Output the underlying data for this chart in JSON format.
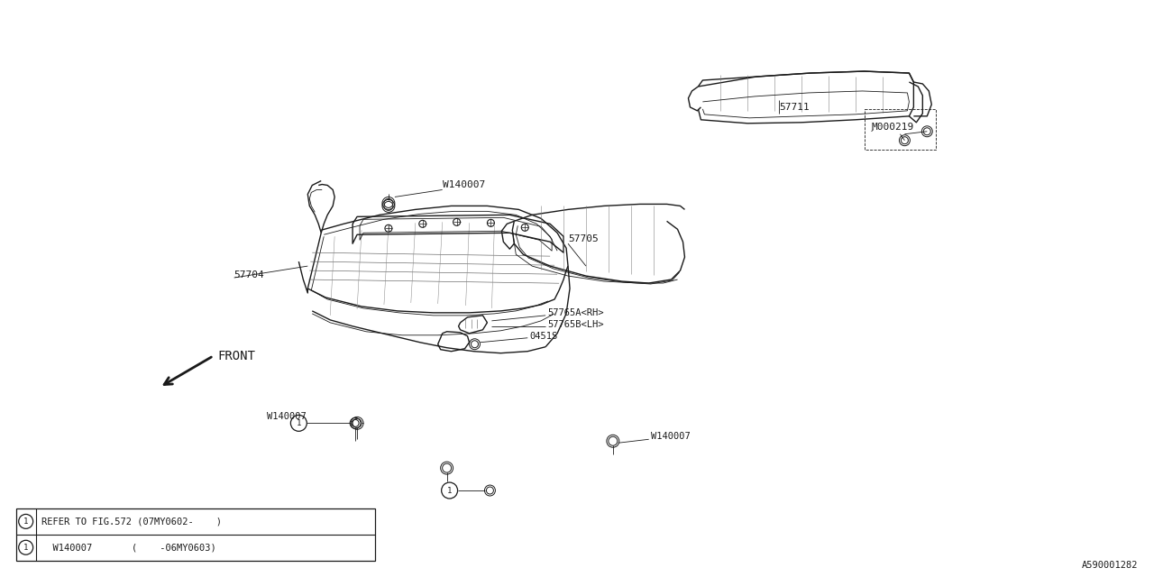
{
  "bg_color": "#ffffff",
  "line_color": "#1a1a1a",
  "fig_width": 12.8,
  "fig_height": 6.4,
  "dpi": 100,
  "footnote_id": "A590001282",
  "table_row1": "    W140007       (    -06MY0603)",
  "table_row2": "REFER TO FIG.572 (07MY0602-    )"
}
